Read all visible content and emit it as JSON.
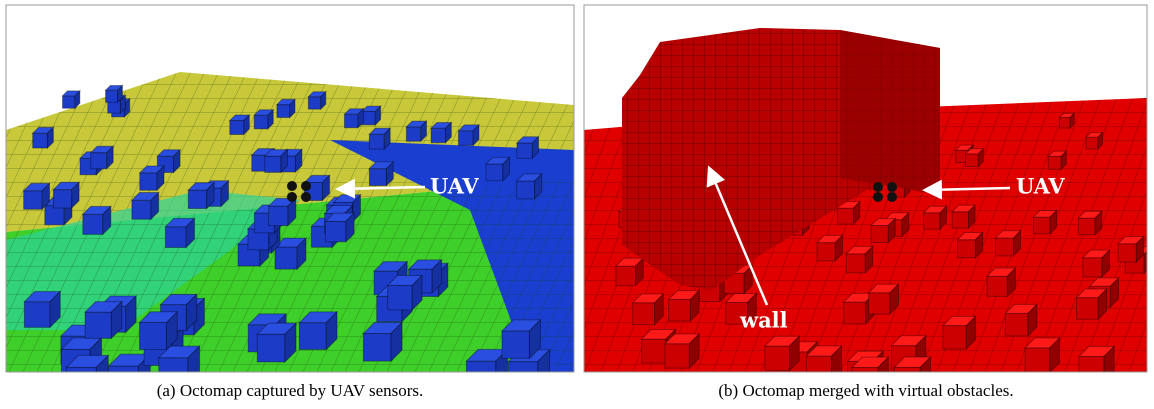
{
  "panels": [
    {
      "annotations": [
        "UAV"
      ],
      "caption": "(a) Octomap captured by UAV sensors."
    },
    {
      "annotations": [
        "UAV",
        "wall"
      ],
      "caption": "(b) Octomap merged with virtual obstacles."
    }
  ]
}
